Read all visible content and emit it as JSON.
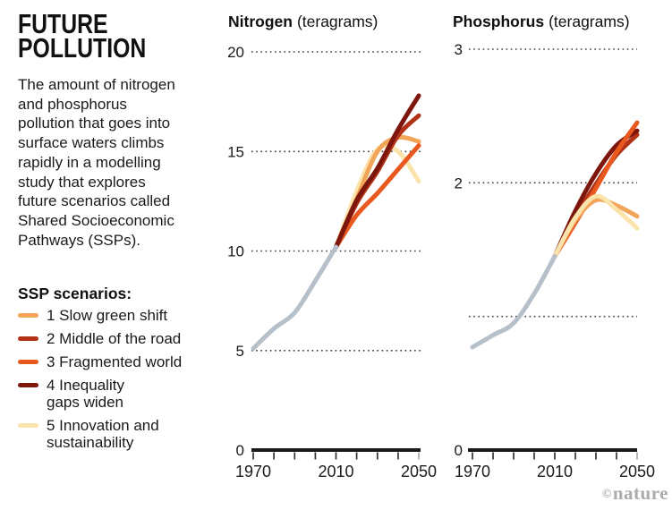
{
  "header": {
    "title": "FUTURE\nPOLLUTION",
    "description": "The amount of nitrogen\nand phosphorus\npollution that goes into\nsurface waters climbs\nrapidly in a modelling\nstudy that explores\nfuture scenarios called\nShared Socioeconomic\nPathways (SSPs)."
  },
  "legend": {
    "heading": "SSP scenarios:",
    "items": [
      {
        "key": "ssp1",
        "label": "1 Slow green shift"
      },
      {
        "key": "ssp2",
        "label": "2 Middle of the road"
      },
      {
        "key": "ssp3",
        "label": "3 Fragmented world"
      },
      {
        "key": "ssp4",
        "label": "4 Inequality\ngaps widen"
      },
      {
        "key": "ssp5",
        "label": "5 Innovation and\nsustainability"
      }
    ]
  },
  "colors": {
    "ssp1": "#F2A459",
    "ssp2": "#B23217",
    "ssp3": "#E9591F",
    "ssp4": "#7D170D",
    "ssp5": "#FBE3AC",
    "historical": "#B6C0CB",
    "axis": "#1A1A1A",
    "tick": "#333333",
    "tick_end": "#ABABAB",
    "grid": "#3C3C3C",
    "credit": "#ABABAB"
  },
  "credit": {
    "symbol": "©",
    "name": "nature"
  },
  "chart_data": [
    {
      "id": "nitrogen",
      "type": "line",
      "title": "Nitrogen",
      "unit_label": "(teragrams)",
      "xlim": [
        1970,
        2050
      ],
      "ylim": [
        0,
        20
      ],
      "grid": "dotted-horizontal",
      "legend_position": "left-panel",
      "x_ticks": [
        1970,
        1980,
        1990,
        2000,
        2010,
        2020,
        2030,
        2040,
        2050
      ],
      "x_tick_labels": [
        {
          "value": 1970,
          "label": "1970"
        },
        {
          "value": 2010,
          "label": "2010"
        },
        {
          "value": 2050,
          "label": "2050"
        }
      ],
      "y_gridlines": [
        {
          "value": 20,
          "label": "20"
        },
        {
          "value": 15,
          "label": "15"
        },
        {
          "value": 10,
          "label": "10"
        },
        {
          "value": 5,
          "label": "5"
        }
      ],
      "zero_label": "0",
      "series": [
        {
          "key": "ssp5",
          "points": [
            [
              2010,
              10.2
            ],
            [
              2020,
              13.0
            ],
            [
              2030,
              15.1
            ],
            [
              2040,
              15.0
            ],
            [
              2050,
              13.5
            ]
          ]
        },
        {
          "key": "ssp1",
          "points": [
            [
              2010,
              10.2
            ],
            [
              2020,
              12.6
            ],
            [
              2030,
              15.0
            ],
            [
              2040,
              15.7
            ],
            [
              2050,
              15.5
            ]
          ]
        },
        {
          "key": "ssp3",
          "points": [
            [
              2010,
              10.2
            ],
            [
              2020,
              11.8
            ],
            [
              2030,
              12.9
            ],
            [
              2040,
              14.1
            ],
            [
              2050,
              15.3
            ]
          ]
        },
        {
          "key": "ssp2",
          "points": [
            [
              2010,
              10.2
            ],
            [
              2020,
              12.4
            ],
            [
              2030,
              14.0
            ],
            [
              2040,
              15.8
            ],
            [
              2050,
              16.8
            ]
          ]
        },
        {
          "key": "ssp4",
          "points": [
            [
              2010,
              10.2
            ],
            [
              2020,
              12.55
            ],
            [
              2030,
              14.15
            ],
            [
              2040,
              16.1
            ],
            [
              2050,
              17.8
            ]
          ]
        },
        {
          "key": "historical",
          "points": [
            [
              1970,
              5.1
            ],
            [
              1980,
              6.1
            ],
            [
              1990,
              6.9
            ],
            [
              2000,
              8.5
            ],
            [
              2010,
              10.2
            ]
          ]
        }
      ]
    },
    {
      "id": "phosphorus",
      "type": "line",
      "title": "Phosphorus",
      "unit_label": "(teragrams)",
      "xlim": [
        1970,
        2050
      ],
      "ylim": [
        0,
        3
      ],
      "grid": "dotted-horizontal",
      "legend_position": "left-panel",
      "x_ticks": [
        1970,
        1980,
        1990,
        2000,
        2010,
        2020,
        2030,
        2040,
        2050
      ],
      "x_tick_labels": [
        {
          "value": 1970,
          "label": "1970"
        },
        {
          "value": 2010,
          "label": "2010"
        },
        {
          "value": 2050,
          "label": "2050"
        }
      ],
      "y_gridlines": [
        {
          "value": 3,
          "label": "3"
        },
        {
          "value": 2,
          "label": "2"
        },
        {
          "value": 1,
          "label": ""
        }
      ],
      "zero_label": "0",
      "series": [
        {
          "key": "ssp2",
          "points": [
            [
              2010,
              1.45
            ],
            [
              2020,
              1.74
            ],
            [
              2030,
              1.99
            ],
            [
              2040,
              2.21
            ],
            [
              2050,
              2.36
            ]
          ]
        },
        {
          "key": "ssp4",
          "points": [
            [
              2010,
              1.45
            ],
            [
              2020,
              1.79
            ],
            [
              2030,
              2.07
            ],
            [
              2040,
              2.28
            ],
            [
              2050,
              2.39
            ]
          ]
        },
        {
          "key": "ssp3",
          "points": [
            [
              2010,
              1.45
            ],
            [
              2020,
              1.7
            ],
            [
              2030,
              1.96
            ],
            [
              2040,
              2.23
            ],
            [
              2050,
              2.45
            ]
          ]
        },
        {
          "key": "ssp1",
          "points": [
            [
              2010,
              1.45
            ],
            [
              2020,
              1.72
            ],
            [
              2030,
              1.87
            ],
            [
              2040,
              1.83
            ],
            [
              2050,
              1.75
            ]
          ]
        },
        {
          "key": "ssp5",
          "points": [
            [
              2010,
              1.45
            ],
            [
              2020,
              1.74
            ],
            [
              2030,
              1.9
            ],
            [
              2040,
              1.8
            ],
            [
              2050,
              1.66
            ]
          ]
        },
        {
          "key": "historical",
          "points": [
            [
              1970,
              0.77
            ],
            [
              1980,
              0.86
            ],
            [
              1990,
              0.95
            ],
            [
              2000,
              1.17
            ],
            [
              2010,
              1.45
            ]
          ]
        }
      ]
    }
  ]
}
